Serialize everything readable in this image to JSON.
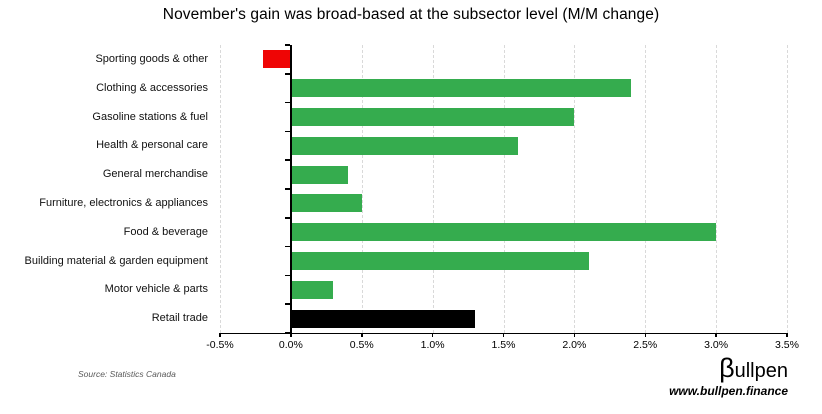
{
  "chart_data": {
    "type": "bar",
    "orientation": "horizontal",
    "title": "November's gain was broad-based at the subsector level (M/M change)",
    "categories": [
      "Sporting goods & other",
      "Clothing & accessories",
      "Gasoline stations & fuel",
      "Health & personal care",
      "General merchandise",
      "Furniture, electronics & appliances",
      "Food & beverage",
      "Building material & garden equipment",
      "Motor vehicle & parts",
      "Retail trade"
    ],
    "values": [
      -0.2,
      2.4,
      2.0,
      1.6,
      0.4,
      0.5,
      3.0,
      2.1,
      0.3,
      1.3
    ],
    "bar_color_roles": [
      "negative",
      "positive",
      "positive",
      "positive",
      "positive",
      "positive",
      "positive",
      "positive",
      "positive",
      "total"
    ],
    "xlim": [
      -0.5,
      3.5
    ],
    "x_tick_labels": [
      "-0.5%",
      "0.0%",
      "0.5%",
      "1.0%",
      "1.5%",
      "2.0%",
      "2.5%",
      "3.0%",
      "3.5%"
    ],
    "grid": "vertical dashed gridlines at every 0.5%",
    "legend": "none",
    "xlabel": "",
    "ylabel": ""
  },
  "colors": {
    "positive": "#35ac4e",
    "negative": "#ef0505",
    "total": "#000000",
    "grid": "#d9d9d9",
    "axis": "#000000"
  },
  "source_note": "Source: Statistics Canada",
  "brand": {
    "logo_beta": "β",
    "logo_rest": "ullpen",
    "url": "www.bullpen.finance"
  }
}
